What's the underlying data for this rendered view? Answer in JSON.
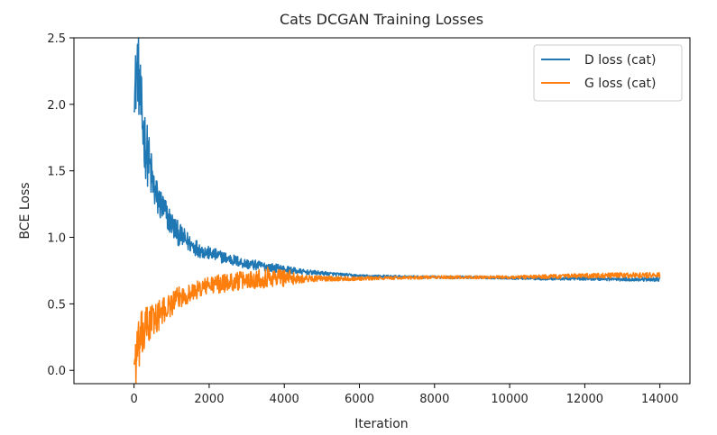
{
  "chart_data": {
    "type": "line",
    "title": "Cats DCGAN Training Losses",
    "xlabel": "Iteration",
    "ylabel": "BCE Loss",
    "xlim": [
      -1600,
      14800
    ],
    "ylim": [
      -0.1,
      2.5
    ],
    "xticks": [
      0,
      2000,
      4000,
      6000,
      8000,
      10000,
      12000,
      14000
    ],
    "yticks": [
      0.0,
      0.5,
      1.0,
      1.5,
      2.0,
      2.5
    ],
    "xtick_labels": [
      "0",
      "2000",
      "4000",
      "6000",
      "8000",
      "10000",
      "12000",
      "14000"
    ],
    "ytick_labels": [
      "0.0",
      "0.5",
      "1.0",
      "1.5",
      "2.0",
      "2.5"
    ],
    "grid": false,
    "legend_position": "top-right",
    "series": [
      {
        "name": "D loss (cat)",
        "color": "#1f77b4",
        "x": [
          0,
          50,
          100,
          150,
          200,
          300,
          400,
          500,
          600,
          800,
          1000,
          1200,
          1500,
          1800,
          2000,
          2500,
          3000,
          3500,
          4000,
          4500,
          5000,
          6000,
          7000,
          8000,
          9000,
          10000,
          11000,
          12000,
          13000,
          14000
        ],
        "values": [
          2.0,
          2.2,
          2.3,
          2.1,
          1.9,
          1.7,
          1.55,
          1.4,
          1.3,
          1.2,
          1.1,
          1.02,
          0.95,
          0.9,
          0.88,
          0.84,
          0.8,
          0.78,
          0.76,
          0.74,
          0.73,
          0.71,
          0.705,
          0.7,
          0.7,
          0.695,
          0.69,
          0.69,
          0.685,
          0.685
        ],
        "noise": [
          0.05,
          0.3,
          0.3,
          0.3,
          0.3,
          0.25,
          0.22,
          0.18,
          0.15,
          0.12,
          0.1,
          0.09,
          0.07,
          0.06,
          0.05,
          0.045,
          0.04,
          0.035,
          0.03,
          0.02,
          0.015,
          0.01,
          0.01,
          0.01,
          0.01,
          0.01,
          0.012,
          0.012,
          0.015,
          0.015
        ]
      },
      {
        "name": "G loss (cat)",
        "color": "#ff7f0e",
        "x": [
          0,
          50,
          100,
          150,
          200,
          300,
          400,
          500,
          600,
          800,
          1000,
          1200,
          1500,
          1800,
          2000,
          2500,
          3000,
          3500,
          4000,
          4500,
          5000,
          6000,
          7000,
          8000,
          9000,
          10000,
          11000,
          12000,
          13000,
          14000
        ],
        "values": [
          0.05,
          0.1,
          0.15,
          0.2,
          0.25,
          0.3,
          0.35,
          0.38,
          0.4,
          0.45,
          0.5,
          0.55,
          0.58,
          0.62,
          0.64,
          0.66,
          0.68,
          0.7,
          0.7,
          0.69,
          0.69,
          0.69,
          0.695,
          0.7,
          0.7,
          0.7,
          0.705,
          0.71,
          0.715,
          0.715
        ],
        "noise": [
          0.02,
          0.25,
          0.2,
          0.2,
          0.2,
          0.18,
          0.16,
          0.14,
          0.12,
          0.1,
          0.09,
          0.08,
          0.07,
          0.07,
          0.07,
          0.07,
          0.07,
          0.08,
          0.07,
          0.03,
          0.02,
          0.015,
          0.012,
          0.012,
          0.012,
          0.012,
          0.015,
          0.018,
          0.02,
          0.02
        ]
      }
    ]
  }
}
